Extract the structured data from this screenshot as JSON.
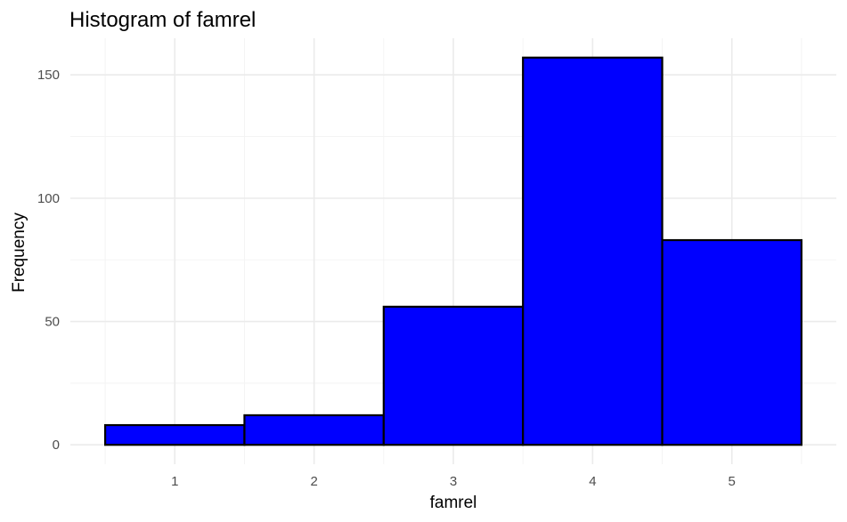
{
  "chart_data": {
    "type": "bar",
    "title": "Histogram of famrel",
    "xlabel": "famrel",
    "ylabel": "Frequency",
    "categories": [
      "1",
      "2",
      "3",
      "4",
      "5"
    ],
    "x": [
      1,
      2,
      3,
      4,
      5
    ],
    "values": [
      8,
      12,
      56,
      157,
      83
    ],
    "bin_width": 1,
    "xlim": [
      0.25,
      5.75
    ],
    "ylim": [
      -7.85,
      164.85
    ],
    "yticks": [
      0,
      50,
      100,
      150
    ],
    "ytick_labels": [
      "0",
      "50",
      "100",
      "150"
    ],
    "xtick_labels": [
      "1",
      "2",
      "3",
      "4",
      "5"
    ],
    "grid": true,
    "bar_fill": "#0000ff",
    "bar_outline": "#000000",
    "legend": "none"
  }
}
